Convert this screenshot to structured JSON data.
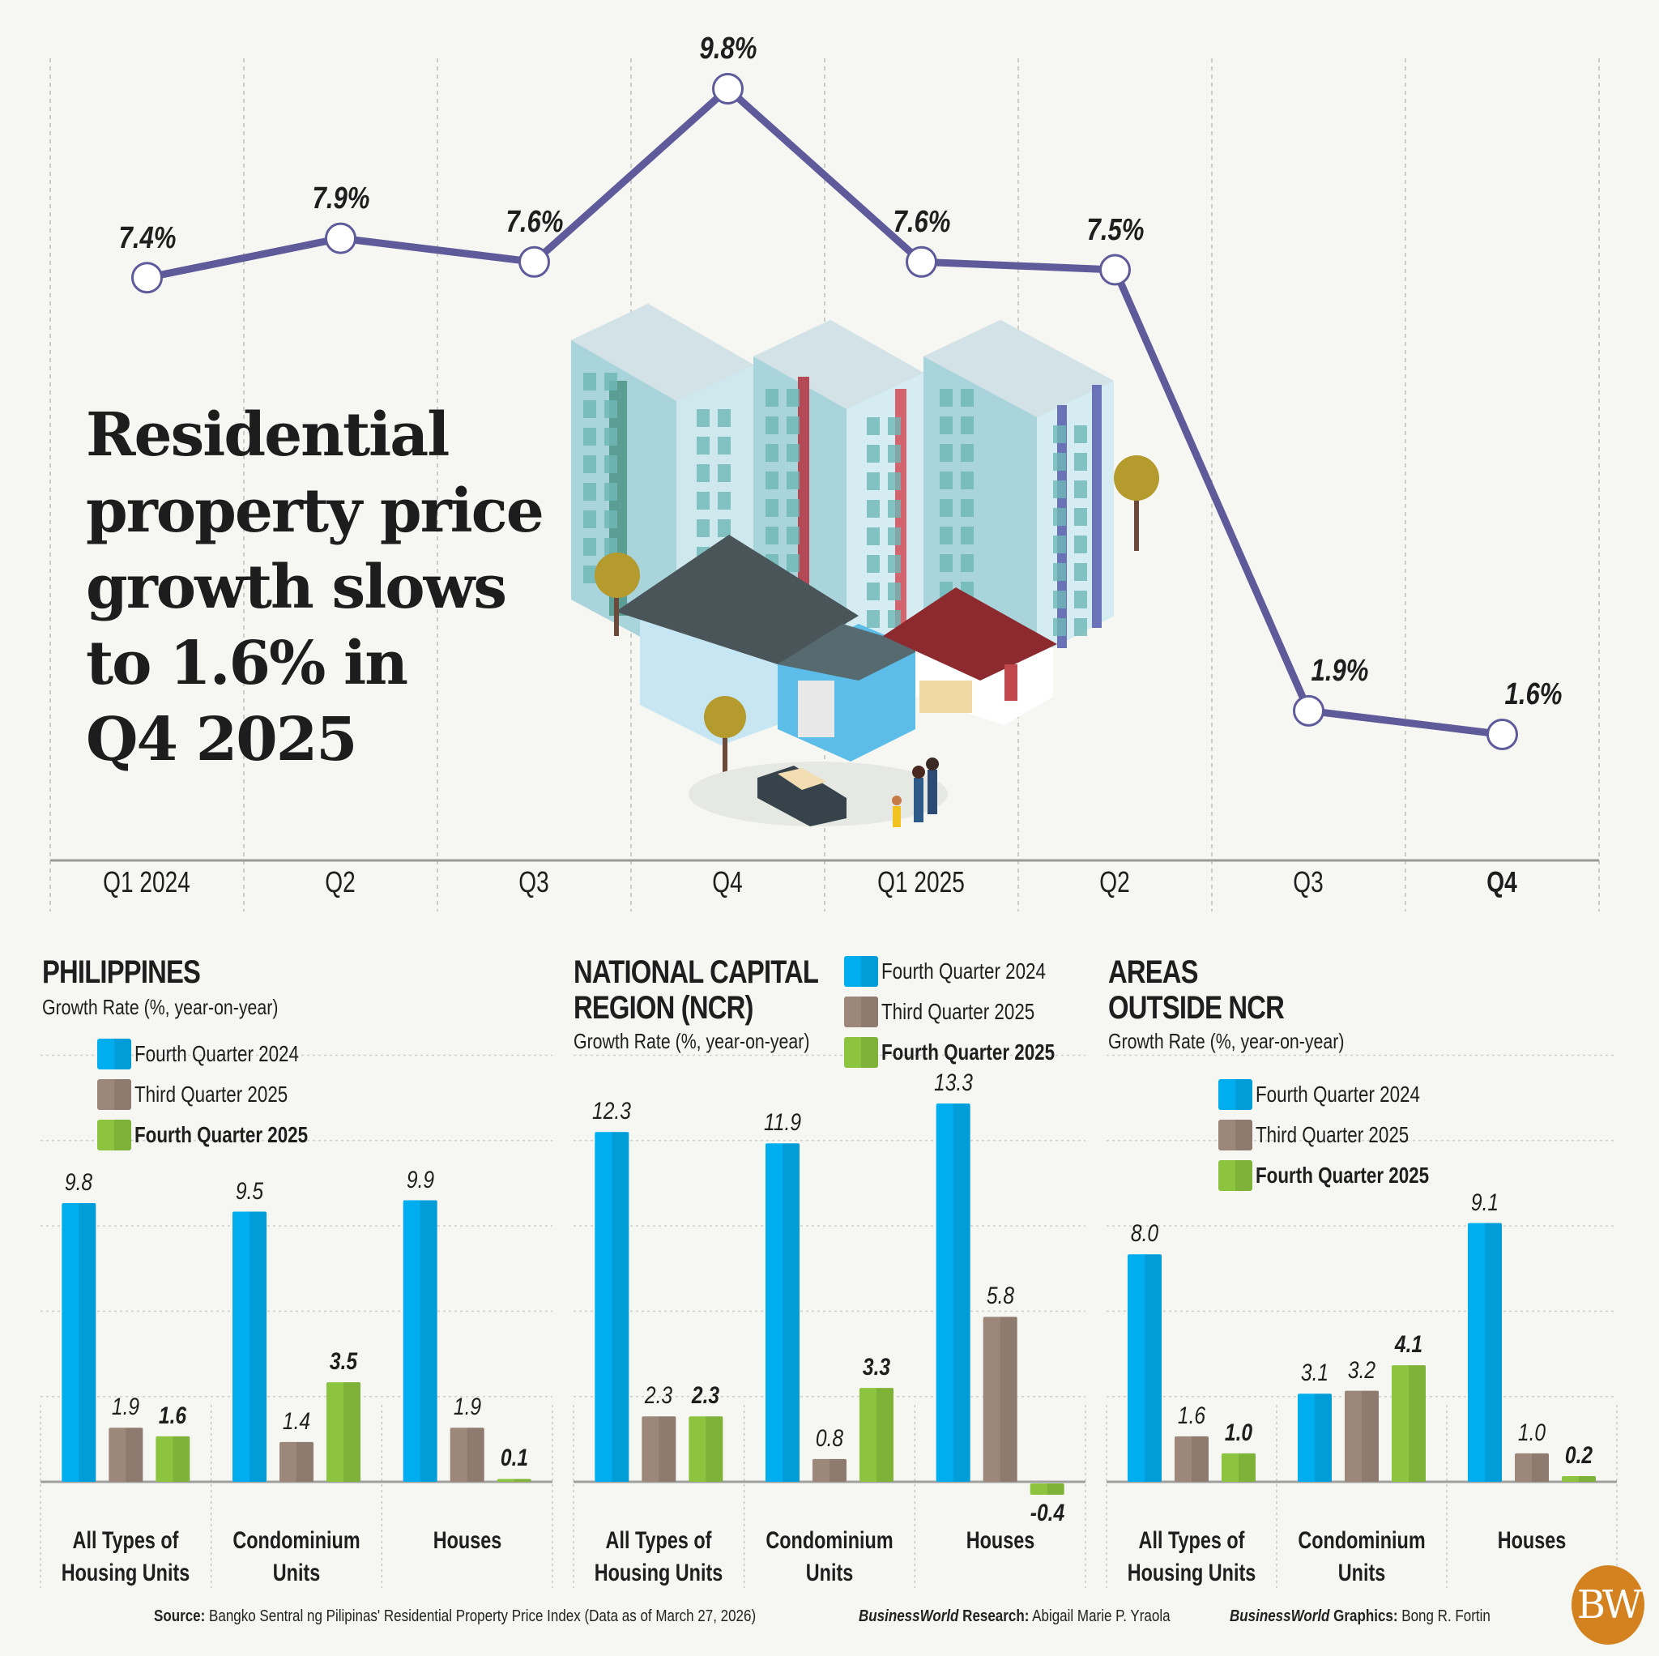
{
  "headline": "Residential property price growth slows to 1.6% in Q4 2025",
  "headline_lines": [
    "Residential",
    "property price",
    "growth slows",
    "to 1.6% in",
    "Q4 2025"
  ],
  "colors": {
    "background": "#f6f7f2",
    "line": "#5f5b9b",
    "q4_2024": "#00adef",
    "q3_2025": "#9d877a",
    "q4_2025": "#8cc43f",
    "logo": "#d4821f"
  },
  "chart_data": [
    {
      "type": "line",
      "title": "Residential property price growth slows to 1.6% in Q4 2025",
      "categories": [
        "Q1 2024",
        "Q2",
        "Q3",
        "Q4",
        "Q1 2025",
        "Q2",
        "Q3",
        "Q4"
      ],
      "values": [
        7.4,
        7.9,
        7.6,
        9.8,
        7.6,
        7.5,
        1.9,
        1.6
      ],
      "labels": [
        "7.4%",
        "7.9%",
        "7.6%",
        "9.8%",
        "7.6%",
        "7.5%",
        "1.9%",
        "1.6%"
      ],
      "ylim": [
        0,
        10.5
      ],
      "xlabel": "",
      "ylabel": "",
      "grid": "vertical dashed"
    },
    {
      "type": "bar",
      "title": "PHILIPPINES",
      "subtitle": "Growth Rate (%, year-on-year)",
      "categories": [
        "All Types of\nHousing Units",
        "Condominium\nUnits",
        "Houses"
      ],
      "series": [
        {
          "name": "Fourth Quarter 2024",
          "values": [
            9.8,
            9.5,
            9.9
          ]
        },
        {
          "name": "Third Quarter 2025",
          "values": [
            1.9,
            1.4,
            1.9
          ]
        },
        {
          "name": "Fourth Quarter 2025",
          "values": [
            1.6,
            3.5,
            0.1
          ]
        }
      ],
      "legend": "top-left",
      "ylim": [
        0,
        14
      ]
    },
    {
      "type": "bar",
      "title": "NATIONAL CAPITAL\nREGION (NCR)",
      "subtitle": "Growth Rate (%, year-on-year)",
      "categories": [
        "All Types of\nHousing Units",
        "Condominium\nUnits",
        "Houses"
      ],
      "series": [
        {
          "name": "Fourth Quarter 2024",
          "values": [
            12.3,
            11.9,
            13.3
          ]
        },
        {
          "name": "Third Quarter 2025",
          "values": [
            2.3,
            0.8,
            5.8
          ]
        },
        {
          "name": "Fourth Quarter 2025",
          "values": [
            2.3,
            3.3,
            -0.4
          ]
        }
      ],
      "legend": "top-right",
      "ylim": [
        -1,
        14
      ]
    },
    {
      "type": "bar",
      "title": "AREAS\nOUTSIDE NCR",
      "subtitle": "Growth Rate  (%, year-on-year)",
      "categories": [
        "All Types of\nHousing Units",
        "Condominium\nUnits",
        "Houses"
      ],
      "series": [
        {
          "name": "Fourth Quarter 2024",
          "values": [
            8.0,
            3.1,
            9.1
          ]
        },
        {
          "name": "Third Quarter 2025",
          "values": [
            1.6,
            3.2,
            1.0
          ]
        },
        {
          "name": "Fourth Quarter 2025",
          "values": [
            1.0,
            4.1,
            0.2
          ]
        }
      ],
      "legend": "top-left",
      "ylim": [
        0,
        14
      ]
    }
  ],
  "footer": {
    "source_label": "Source:",
    "source_text": "Bangko Sentral ng Pilipinas' Residential Property Price Index (Data as of March 27, 2026)",
    "research_brand": "BusinessWorld",
    "research_label": "Research:",
    "research_name": "Abigail Marie P. Yraola",
    "graphics_brand": "BusinessWorld",
    "graphics_label": "Graphics:",
    "graphics_name": "Bong R. Fortin",
    "logo_text": "BW"
  },
  "illustration": "isometric-apartment-buildings-houses-family-car"
}
